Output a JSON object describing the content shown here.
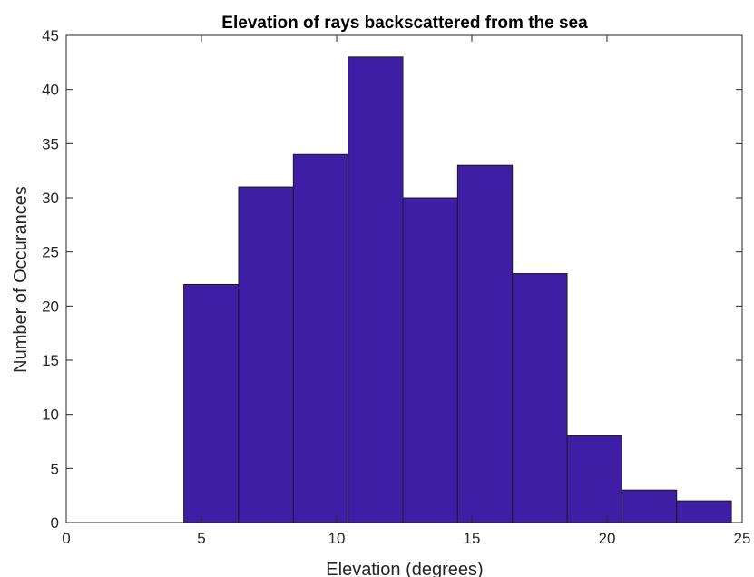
{
  "chart_data": {
    "type": "bar",
    "title": "Elevation of rays backscattered from the sea",
    "xlabel": "Elevation (degrees)",
    "ylabel": "Number of Occurances",
    "xlim": [
      0,
      25
    ],
    "ylim": [
      0,
      45
    ],
    "xticks": [
      0,
      5,
      10,
      15,
      20,
      25
    ],
    "yticks": [
      0,
      5,
      10,
      15,
      20,
      25,
      30,
      35,
      40,
      45
    ],
    "bar_color": "#3F1EA6",
    "grid": false,
    "bins": [
      {
        "start": 4.35,
        "end": 6.375,
        "count": 22
      },
      {
        "start": 6.375,
        "end": 8.4,
        "count": 31
      },
      {
        "start": 8.4,
        "end": 10.425,
        "count": 34
      },
      {
        "start": 10.425,
        "end": 12.45,
        "count": 43
      },
      {
        "start": 12.45,
        "end": 14.475,
        "count": 30
      },
      {
        "start": 14.475,
        "end": 16.5,
        "count": 33
      },
      {
        "start": 16.5,
        "end": 18.525,
        "count": 23
      },
      {
        "start": 18.525,
        "end": 20.55,
        "count": 8
      },
      {
        "start": 20.55,
        "end": 22.575,
        "count": 3
      },
      {
        "start": 22.575,
        "end": 24.6,
        "count": 2
      }
    ]
  }
}
